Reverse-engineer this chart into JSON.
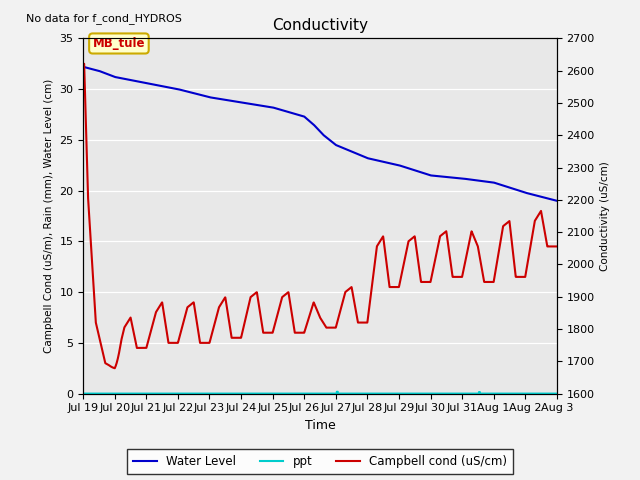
{
  "title": "Conductivity",
  "top_left_text": "No data for f_cond_HYDROS",
  "xlabel": "Time",
  "ylabel_left": "Campbell Cond (uS/m), Rain (mm), Water Level (cm)",
  "ylabel_right": "Conductivity (uS/cm)",
  "ylim_left": [
    0,
    35
  ],
  "ylim_right": [
    1600,
    2700
  ],
  "background_color": "#f2f2f2",
  "plot_bg_color": "#e8e8e8",
  "annotation_box_text": "MB_tule",
  "annotation_box_color": "#ffffcc",
  "annotation_box_edge": "#ccaa00",
  "legend_items": [
    {
      "label": "Water Level",
      "color": "#0000cc",
      "lw": 1.5
    },
    {
      "label": "ppt",
      "color": "#00cccc",
      "lw": 1.5
    },
    {
      "label": "Campbell cond (uS/cm)",
      "color": "#cc0000",
      "lw": 1.5
    }
  ],
  "x_tick_labels": [
    "Jul 19",
    "Jul 20",
    "Jul 21",
    "Jul 22",
    "Jul 23",
    "Jul 24",
    "Jul 25",
    "Jul 26",
    "Jul 27",
    "Jul 28",
    "Jul 29",
    "Jul 30",
    "Jul 31",
    "Aug 1",
    "Aug 2",
    "Aug 3"
  ],
  "yticks_left": [
    0,
    5,
    10,
    15,
    20,
    25,
    30,
    35
  ],
  "yticks_right": [
    1600,
    1700,
    1800,
    1900,
    2000,
    2100,
    2200,
    2300,
    2400,
    2500,
    2600,
    2700
  ],
  "wl_x": [
    0,
    0.5,
    1,
    2,
    3,
    4,
    5,
    6,
    7,
    7.3,
    7.6,
    8,
    9,
    10,
    11,
    12,
    13,
    14,
    15
  ],
  "wl_y": [
    32.2,
    31.8,
    31.2,
    30.6,
    30.0,
    29.2,
    28.7,
    28.2,
    27.3,
    26.5,
    25.5,
    24.5,
    23.2,
    22.5,
    21.5,
    21.2,
    20.8,
    19.8,
    19.0
  ],
  "ppt_spikes": [
    {
      "day": 8.05,
      "val": 0.18
    },
    {
      "day": 12.55,
      "val": 0.15
    }
  ],
  "cc_initial_x": [
    0.0,
    0.03,
    0.15,
    0.4,
    0.7,
    1.0
  ],
  "cc_initial_y": [
    32.5,
    32.5,
    19.5,
    7.0,
    3.0,
    2.5
  ],
  "cc_osc_x": [
    1.0,
    1.3,
    1.5,
    1.7,
    2.0,
    2.3,
    2.5,
    2.7,
    3.0,
    3.3,
    3.5,
    3.7,
    4.0,
    4.3,
    4.5,
    4.7,
    5.0,
    5.3,
    5.5,
    5.7,
    6.0,
    6.3,
    6.5,
    6.7,
    7.0,
    7.3,
    7.5,
    7.7,
    8.0,
    8.3,
    8.5,
    8.7,
    9.0,
    9.3,
    9.5,
    9.7,
    10.0,
    10.3,
    10.5,
    10.7,
    11.0,
    11.3,
    11.5,
    11.7,
    12.0,
    12.3,
    12.5,
    12.7,
    13.0,
    13.3,
    13.5,
    13.7,
    14.0,
    14.3,
    14.5,
    14.7,
    15.0
  ],
  "cc_osc_y": [
    2.5,
    6.5,
    7.5,
    4.5,
    4.5,
    8.0,
    9.0,
    5.0,
    5.0,
    8.5,
    9.0,
    5.0,
    5.0,
    8.5,
    9.5,
    5.5,
    5.5,
    9.5,
    10.0,
    6.0,
    6.0,
    9.5,
    10.0,
    6.0,
    6.0,
    9.0,
    7.5,
    6.5,
    6.5,
    10.0,
    10.5,
    7.0,
    7.0,
    14.5,
    15.5,
    10.5,
    10.5,
    15.0,
    15.5,
    11.0,
    11.0,
    15.5,
    16.0,
    11.5,
    11.5,
    16.0,
    14.5,
    11.0,
    11.0,
    16.5,
    17.0,
    11.5,
    11.5,
    17.0,
    18.0,
    14.5,
    14.5
  ]
}
